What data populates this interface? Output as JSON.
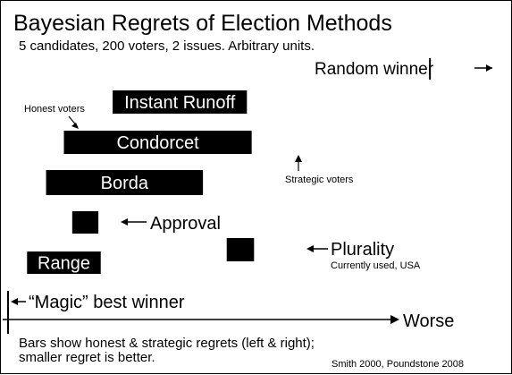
{
  "chart_data": {
    "type": "bar",
    "title": "Bayesian Regrets of Election Methods",
    "subtitle": "5 candidates, 200 voters, 2 issues.  Arbitrary units.",
    "xlabel": "Worse",
    "methods": [
      {
        "name": "Instant Runoff",
        "honest": 0.88,
        "strategic": 2.01
      },
      {
        "name": "Condorcet",
        "honest": 0.47,
        "strategic": 2.05
      },
      {
        "name": "Borda",
        "honest": 0.32,
        "strategic": 1.64
      },
      {
        "name": "Approval",
        "honest": 0.54,
        "strategic": 0.76
      },
      {
        "name": "Plurality",
        "honest": 1.84,
        "strategic": 2.07
      },
      {
        "name": "Range",
        "honest": 0.16,
        "strategic": 0.78
      }
    ],
    "random_winner": {
      "label": "Random winner",
      "value": 3.55
    },
    "magic_winner": {
      "label": "“Magic” best winner",
      "value": 0
    },
    "annotations": {
      "honest_voters": "Honest voters",
      "strategic_voters": "Strategic voters",
      "plurality_note": "Currently used, USA"
    },
    "footnote": [
      "Bars show honest & strategic regrets (left & right);",
      "smaller regret is better."
    ],
    "credit": "Smith 2000,  Poundstone 2008",
    "bar_color": "#000000",
    "label_color": "#ffffff"
  }
}
